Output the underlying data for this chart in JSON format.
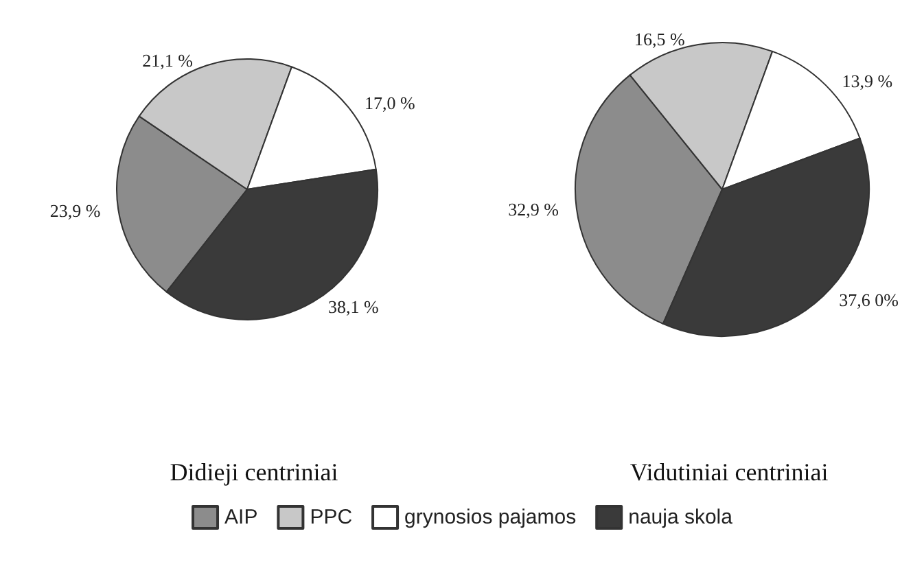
{
  "chart_data": {
    "type": "pie",
    "categories": [
      "AIP",
      "PPC",
      "grynosios pajamos",
      "nauja skola"
    ],
    "colors": [
      "#8c8c8c",
      "#c8c8c8",
      "#ffffff",
      "#3a3a3a"
    ],
    "legend": "bottom",
    "series": [
      {
        "name": "Didieji centriniai",
        "values": [
          23.9,
          21.1,
          17.0,
          38.1
        ],
        "value_labels": [
          "23,9 %",
          "21,1 %",
          "17,0 %",
          "38,1 %"
        ]
      },
      {
        "name": "Vidutiniai centriniai",
        "values": [
          32.9,
          16.5,
          13.9,
          37.6
        ],
        "value_labels": [
          "32,9 %",
          "16,5 %",
          "13,9 %",
          "37,6 0%"
        ]
      }
    ]
  }
}
